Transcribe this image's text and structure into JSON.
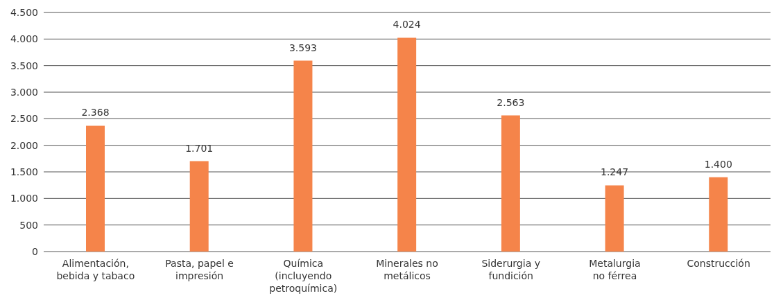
{
  "chart_data": {
    "type": "bar",
    "categories": [
      "Alimentación,\nbebida y tabaco",
      "Pasta, papel e\nimpresión",
      "Química\n(incluyendo\npetroquímica)",
      "Minerales no\nmetálicos",
      "Siderurgia y\nfundición",
      "Metalurgia\nno férrea",
      "Construcción"
    ],
    "values": [
      2368,
      1701,
      3593,
      4024,
      2563,
      1247,
      1400
    ],
    "value_labels": [
      "2.368",
      "1.701",
      "3.593",
      "4.024",
      "2.563",
      "1.247",
      "1.400"
    ],
    "color": "#f5844a",
    "ylim": [
      0,
      4500
    ],
    "yticks": [
      {
        "value": 0,
        "label": "0"
      },
      {
        "value": 500,
        "label": "500"
      },
      {
        "value": 1000,
        "label": "1.000"
      },
      {
        "value": 1500,
        "label": "1.500"
      },
      {
        "value": 2000,
        "label": "2.000"
      },
      {
        "value": 2500,
        "label": "2.500"
      },
      {
        "value": 3000,
        "label": "3.000"
      },
      {
        "value": 3500,
        "label": "3.500"
      },
      {
        "value": 4000,
        "label": "4.000"
      },
      {
        "value": 4500,
        "label": "4.500"
      }
    ],
    "grid": "y"
  }
}
